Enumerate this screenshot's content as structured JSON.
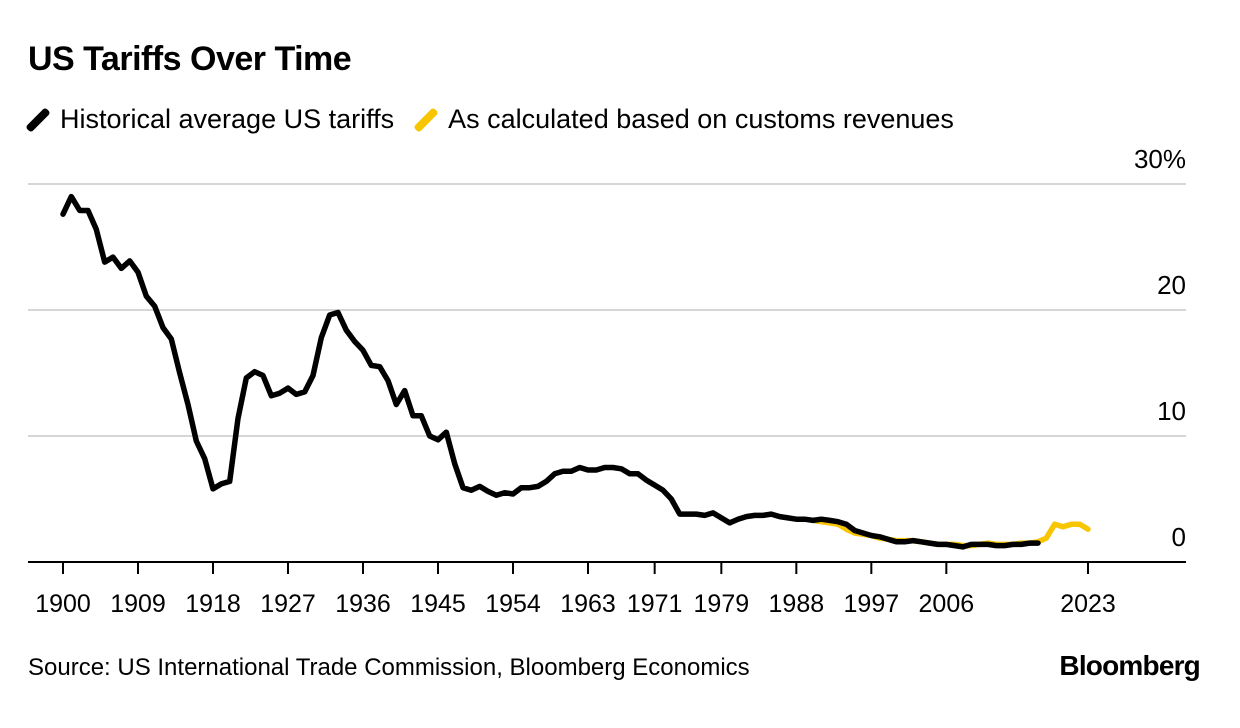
{
  "chart_data": {
    "type": "line",
    "title": "US Tariffs Over Time",
    "xlabel": "",
    "ylabel": "",
    "xlim": [
      1898,
      2030
    ],
    "ylim": [
      0,
      30
    ],
    "y_ticks": [
      0,
      10,
      20,
      30
    ],
    "y_tick_labels": [
      "0",
      "10",
      "20",
      "30%"
    ],
    "x_ticks": [
      1900,
      1909,
      1918,
      1927,
      1936,
      1945,
      1954,
      1963,
      1971,
      1979,
      1988,
      1997,
      2006,
      2023
    ],
    "x_tick_labels": [
      "1900",
      "1909",
      "1918",
      "1927",
      "1936",
      "1945",
      "1954",
      "1963",
      "1971",
      "1979",
      "1988",
      "1997",
      "2006",
      "2023"
    ],
    "series": [
      {
        "name": "As calculated based on customs revenues",
        "color": "#f7c600",
        "points": [
          [
            1990,
            3.3
          ],
          [
            1991,
            3.2
          ],
          [
            1992,
            3.1
          ],
          [
            1993,
            3.0
          ],
          [
            1994,
            2.6
          ],
          [
            1995,
            2.3
          ],
          [
            1996,
            2.2
          ],
          [
            1997,
            2.1
          ],
          [
            1998,
            1.9
          ],
          [
            1999,
            1.8
          ],
          [
            2000,
            1.7
          ],
          [
            2001,
            1.7
          ],
          [
            2002,
            1.7
          ],
          [
            2003,
            1.6
          ],
          [
            2004,
            1.5
          ],
          [
            2005,
            1.4
          ],
          [
            2006,
            1.4
          ],
          [
            2007,
            1.4
          ],
          [
            2008,
            1.3
          ],
          [
            2009,
            1.3
          ],
          [
            2010,
            1.4
          ],
          [
            2011,
            1.5
          ],
          [
            2012,
            1.4
          ],
          [
            2013,
            1.4
          ],
          [
            2014,
            1.4
          ],
          [
            2015,
            1.5
          ],
          [
            2016,
            1.5
          ],
          [
            2017,
            1.6
          ],
          [
            2018,
            1.9
          ],
          [
            2019,
            3.0
          ],
          [
            2020,
            2.8
          ],
          [
            2021,
            3.0
          ],
          [
            2022,
            3.0
          ],
          [
            2023,
            2.6
          ]
        ]
      },
      {
        "name": "Historical average US tariffs",
        "color": "#000000",
        "points": [
          [
            1900,
            27.6
          ],
          [
            1901,
            29.0
          ],
          [
            1902,
            27.9
          ],
          [
            1903,
            27.9
          ],
          [
            1904,
            26.4
          ],
          [
            1905,
            23.8
          ],
          [
            1906,
            24.2
          ],
          [
            1907,
            23.3
          ],
          [
            1908,
            23.9
          ],
          [
            1909,
            23.0
          ],
          [
            1910,
            21.1
          ],
          [
            1911,
            20.3
          ],
          [
            1912,
            18.6
          ],
          [
            1913,
            17.7
          ],
          [
            1914,
            15.0
          ],
          [
            1915,
            12.5
          ],
          [
            1916,
            9.6
          ],
          [
            1917,
            8.2
          ],
          [
            1918,
            5.8
          ],
          [
            1919,
            6.2
          ],
          [
            1920,
            6.4
          ],
          [
            1921,
            11.4
          ],
          [
            1922,
            14.6
          ],
          [
            1923,
            15.1
          ],
          [
            1924,
            14.8
          ],
          [
            1925,
            13.2
          ],
          [
            1926,
            13.4
          ],
          [
            1927,
            13.8
          ],
          [
            1928,
            13.3
          ],
          [
            1929,
            13.5
          ],
          [
            1930,
            14.8
          ],
          [
            1931,
            17.8
          ],
          [
            1932,
            19.6
          ],
          [
            1933,
            19.8
          ],
          [
            1934,
            18.4
          ],
          [
            1935,
            17.5
          ],
          [
            1936,
            16.8
          ],
          [
            1937,
            15.6
          ],
          [
            1938,
            15.5
          ],
          [
            1939,
            14.4
          ],
          [
            1940,
            12.5
          ],
          [
            1941,
            13.6
          ],
          [
            1942,
            11.6
          ],
          [
            1943,
            11.6
          ],
          [
            1944,
            10.0
          ],
          [
            1945,
            9.7
          ],
          [
            1946,
            10.3
          ],
          [
            1947,
            7.8
          ],
          [
            1948,
            5.9
          ],
          [
            1949,
            5.7
          ],
          [
            1950,
            6.0
          ],
          [
            1951,
            5.6
          ],
          [
            1952,
            5.3
          ],
          [
            1953,
            5.5
          ],
          [
            1954,
            5.4
          ],
          [
            1955,
            5.9
          ],
          [
            1956,
            5.9
          ],
          [
            1957,
            6.0
          ],
          [
            1958,
            6.4
          ],
          [
            1959,
            7.0
          ],
          [
            1960,
            7.2
          ],
          [
            1961,
            7.2
          ],
          [
            1962,
            7.5
          ],
          [
            1963,
            7.3
          ],
          [
            1964,
            7.3
          ],
          [
            1965,
            7.5
          ],
          [
            1966,
            7.5
          ],
          [
            1967,
            7.4
          ],
          [
            1968,
            7.0
          ],
          [
            1969,
            7.0
          ],
          [
            1970,
            6.5
          ],
          [
            1971,
            6.1
          ],
          [
            1972,
            5.7
          ],
          [
            1973,
            5.0
          ],
          [
            1974,
            3.8
          ],
          [
            1975,
            3.8
          ],
          [
            1976,
            3.8
          ],
          [
            1977,
            3.7
          ],
          [
            1978,
            3.9
          ],
          [
            1979,
            3.5
          ],
          [
            1980,
            3.1
          ],
          [
            1981,
            3.4
          ],
          [
            1982,
            3.6
          ],
          [
            1983,
            3.7
          ],
          [
            1984,
            3.7
          ],
          [
            1985,
            3.8
          ],
          [
            1986,
            3.6
          ],
          [
            1987,
            3.5
          ],
          [
            1988,
            3.4
          ],
          [
            1989,
            3.4
          ],
          [
            1990,
            3.3
          ],
          [
            1991,
            3.4
          ],
          [
            1992,
            3.3
          ],
          [
            1993,
            3.2
          ],
          [
            1994,
            3.0
          ],
          [
            1995,
            2.5
          ],
          [
            1996,
            2.3
          ],
          [
            1997,
            2.1
          ],
          [
            1998,
            2.0
          ],
          [
            1999,
            1.8
          ],
          [
            2000,
            1.6
          ],
          [
            2001,
            1.6
          ],
          [
            2002,
            1.7
          ],
          [
            2003,
            1.6
          ],
          [
            2004,
            1.5
          ],
          [
            2005,
            1.4
          ],
          [
            2006,
            1.4
          ],
          [
            2007,
            1.3
          ],
          [
            2008,
            1.2
          ],
          [
            2009,
            1.4
          ],
          [
            2010,
            1.4
          ],
          [
            2011,
            1.4
          ],
          [
            2012,
            1.3
          ],
          [
            2013,
            1.3
          ],
          [
            2014,
            1.4
          ],
          [
            2015,
            1.4
          ],
          [
            2016,
            1.5
          ],
          [
            2017,
            1.5
          ]
        ]
      }
    ]
  },
  "legend": {
    "items": [
      {
        "label": "Historical average US tariffs",
        "color": "#000000"
      },
      {
        "label": "As calculated based on customs revenues",
        "color": "#f7c600"
      }
    ]
  },
  "footer": {
    "source": "Source: US International Trade Commission, Bloomberg Economics",
    "brand": "Bloomberg"
  }
}
